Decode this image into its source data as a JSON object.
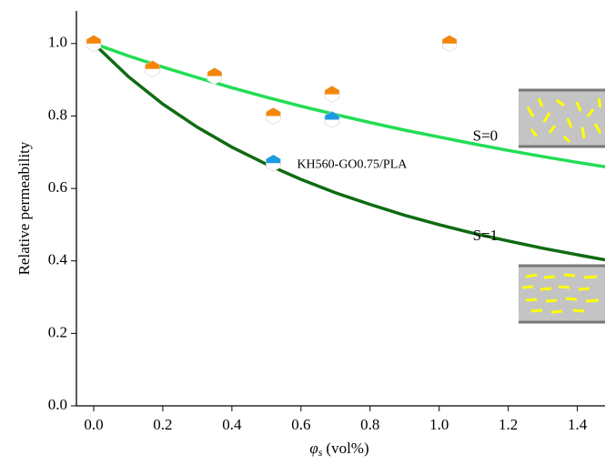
{
  "chart_data": {
    "type": "scatter",
    "y_label": "Relative permeability",
    "x_label": {
      "symbol": "φ",
      "subscript": "s",
      "unit": "(vol%)"
    },
    "xlim": [
      -0.05,
      1.48
    ],
    "ylim": [
      0,
      1.09
    ],
    "xticks": [
      {
        "value": 0,
        "label": "0.0"
      },
      {
        "value": 0.2,
        "label": "0.2"
      },
      {
        "value": 0.4,
        "label": "0.4"
      },
      {
        "value": 0.6,
        "label": "0.6"
      },
      {
        "value": 0.8,
        "label": "0.8"
      },
      {
        "value": 1.0,
        "label": "1.0"
      },
      {
        "value": 1.2,
        "label": "1.2"
      },
      {
        "value": 1.4,
        "label": "1.4"
      }
    ],
    "yticks": [
      {
        "value": 0,
        "label": "0.0"
      },
      {
        "value": 0.2,
        "label": "0.2"
      },
      {
        "value": 0.4,
        "label": "0.4"
      },
      {
        "value": 0.6,
        "label": "0.6"
      },
      {
        "value": 0.8,
        "label": "0.8"
      },
      {
        "value": 1.0,
        "label": "1.0"
      }
    ],
    "series": [
      {
        "name": "S=0",
        "kind": "line",
        "color": "#22dd55",
        "x": [
          0,
          0.1,
          0.2,
          0.3,
          0.4,
          0.5,
          0.6,
          0.7,
          0.8,
          0.9,
          1.0,
          1.1,
          1.2,
          1.3,
          1.4,
          1.48
        ],
        "values": [
          1,
          0.966,
          0.935,
          0.906,
          0.878,
          0.852,
          0.827,
          0.804,
          0.782,
          0.761,
          0.742,
          0.723,
          0.705,
          0.688,
          0.672,
          0.66
        ]
      },
      {
        "name": "S=1",
        "kind": "line",
        "color": "#0f6b12",
        "x": [
          0,
          0.1,
          0.2,
          0.3,
          0.4,
          0.5,
          0.6,
          0.7,
          0.8,
          0.9,
          1.0,
          1.1,
          1.2,
          1.3,
          1.4,
          1.48
        ],
        "values": [
          1,
          0.909,
          0.833,
          0.769,
          0.714,
          0.667,
          0.625,
          0.588,
          0.556,
          0.526,
          0.5,
          0.476,
          0.455,
          0.435,
          0.417,
          0.403
        ]
      },
      {
        "kind": "points",
        "color": "#f5860a",
        "x": [
          0,
          0.17,
          0.35,
          0.52,
          0.69,
          1.03
        ],
        "values": [
          1.0,
          0.93,
          0.91,
          0.8,
          0.86,
          1.0
        ]
      },
      {
        "name": "KH560-GO0.75/PLA",
        "kind": "points",
        "color": "#1a9be0",
        "x": [
          0.52,
          0.69
        ],
        "values": [
          0.67,
          0.79
        ]
      }
    ]
  }
}
